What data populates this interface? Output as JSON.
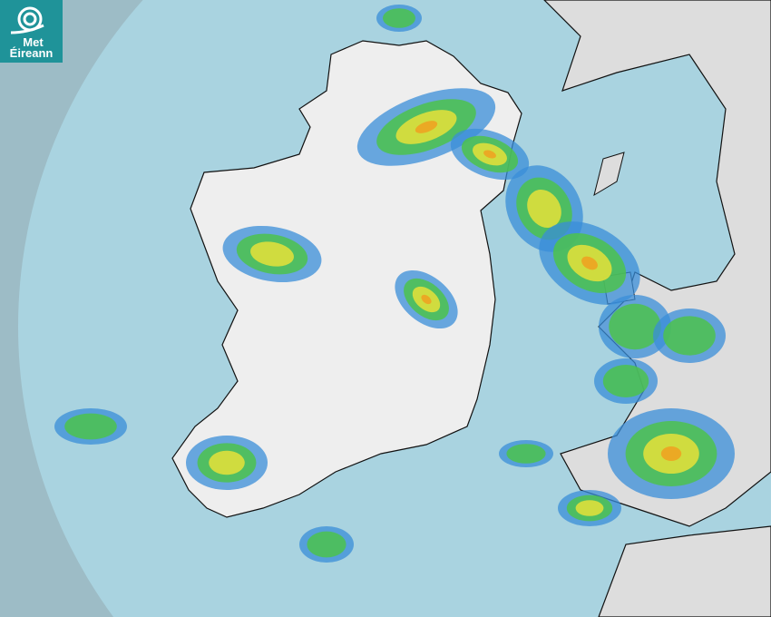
{
  "logo": {
    "line1": "Met",
    "line2": "Éireann",
    "color": "#1f9399"
  },
  "map": {
    "type": "rainfall-radar",
    "colors": {
      "outside_coverage": "#9dbcc6",
      "radar_coverage": "#a9d3e0",
      "land": "#eeeeee",
      "light_rain": "#3a8ed8",
      "moderate_rain": "#4cc24c",
      "heavy_rain": "#e6e23a",
      "very_heavy_rain": "#f0a020"
    }
  }
}
